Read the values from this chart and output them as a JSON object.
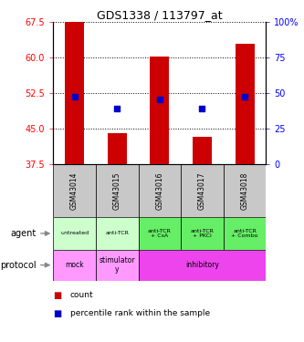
{
  "title": "GDS1338 / 113797_at",
  "samples": [
    "GSM43014",
    "GSM43015",
    "GSM43016",
    "GSM43017",
    "GSM43018"
  ],
  "bar_bottoms": [
    37.5,
    37.5,
    37.5,
    37.5,
    37.5
  ],
  "bar_tops": [
    67.5,
    44.0,
    60.2,
    43.3,
    63.0
  ],
  "percentile_ranks": [
    51.8,
    49.2,
    51.2,
    49.2,
    51.8
  ],
  "ylim": [
    37.5,
    67.5
  ],
  "yticks_left": [
    37.5,
    45.0,
    52.5,
    60.0,
    67.5
  ],
  "yticks_right": [
    0,
    25,
    50,
    75,
    100
  ],
  "ytick_right_labels": [
    "0",
    "25",
    "50",
    "75",
    "100%"
  ],
  "bar_color": "#cc0000",
  "dot_color": "#0000cc",
  "legend_red_label": "count",
  "legend_blue_label": "percentile rank within the sample",
  "agent_row_label": "agent",
  "protocol_row_label": "protocol",
  "gsm_bg_color": "#c8c8c8",
  "agent_bg_light": "#ccffcc",
  "agent_bg_dark": "#66ee66",
  "agent_labels": [
    "untreated",
    "anti-TCR",
    "anti-TCR\n+ CsA",
    "anti-TCR\n+ PKCi",
    "anti-TCR\n+ Combo"
  ],
  "protocol_mock_color": "#ff99ff",
  "protocol_stimulatory_color": "#ff99ff",
  "protocol_inhibitory_color": "#ee44ee",
  "proto_spans": [
    [
      0,
      1,
      "mock"
    ],
    [
      1,
      2,
      "stimulator\ny"
    ],
    [
      2,
      5,
      "inhibitory"
    ]
  ]
}
